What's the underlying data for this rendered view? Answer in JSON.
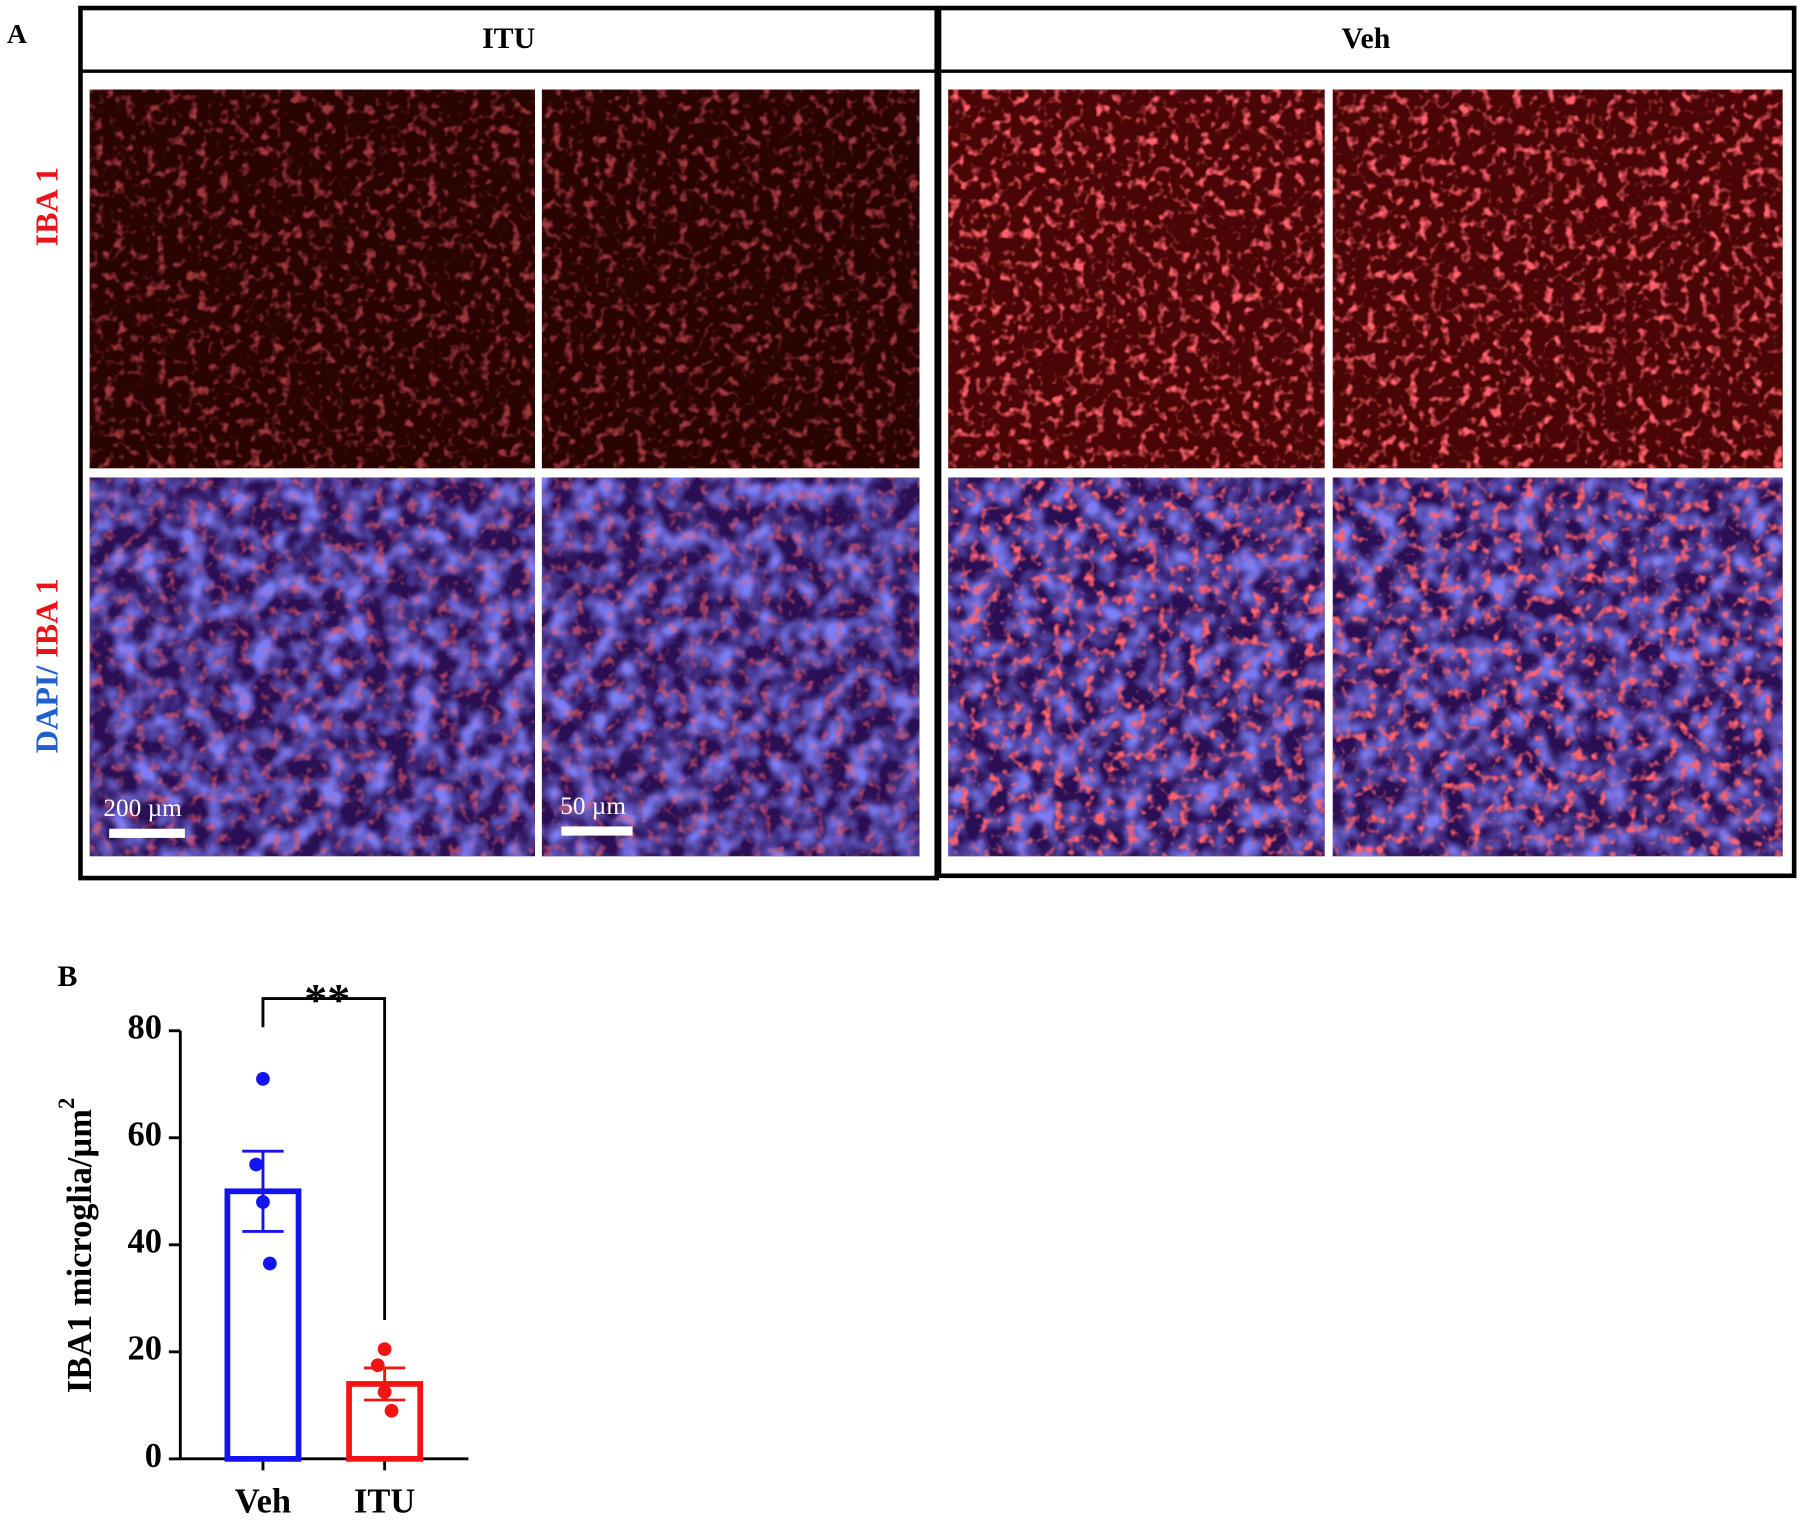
{
  "panel_a": {
    "label": "A",
    "columns": [
      "ITU",
      "Veh"
    ],
    "row_labels": [
      [
        {
          "text": "IBA 1",
          "color": "#e8141a"
        }
      ],
      [
        {
          "text": "DAPI/",
          "color": "#1f5fd0"
        },
        {
          "text": "IBA 1",
          "color": "#e8141a"
        }
      ]
    ],
    "scale_bars": [
      "200 µm",
      "50 µm"
    ]
  },
  "chart_data": {
    "type": "bar",
    "panel_label": "B",
    "y_label": "IBA1 microglia/µm",
    "y_label_superscript": "2",
    "categories": [
      "Veh",
      "ITU"
    ],
    "values": [
      50,
      14
    ],
    "errors": [
      7.5,
      3
    ],
    "points": [
      [
        71,
        55,
        48,
        36.5
      ],
      [
        20.5,
        17.5,
        12.5,
        9
      ]
    ],
    "colors": [
      "#1414f0",
      "#f01414"
    ],
    "significance": "**",
    "ylim": [
      0,
      80
    ],
    "yticks": [
      0,
      20,
      40,
      60,
      80
    ]
  }
}
